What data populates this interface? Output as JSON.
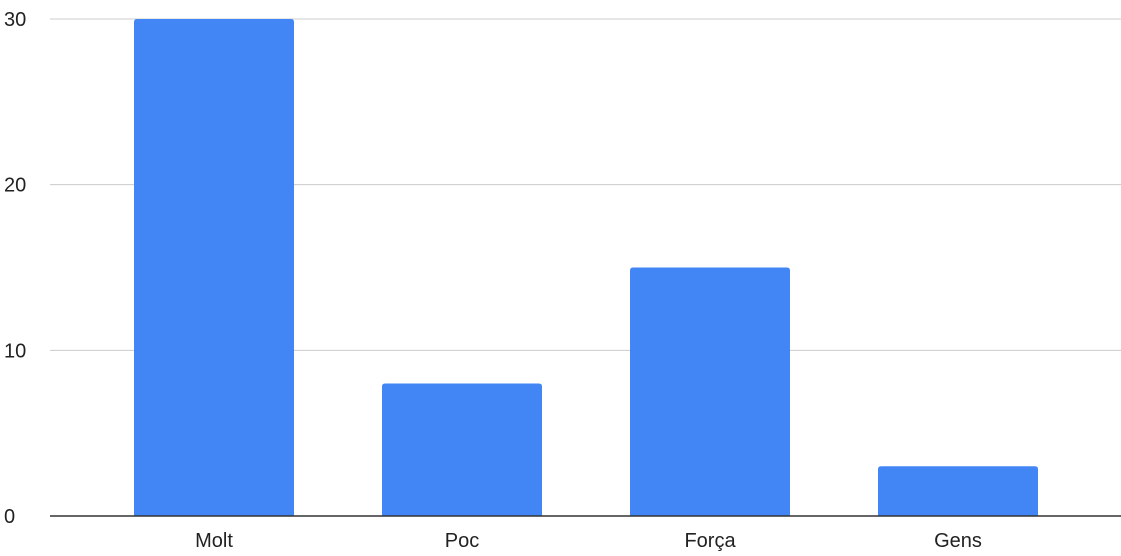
{
  "chart_data": {
    "type": "bar",
    "categories": [
      "Molt",
      "Poc",
      "Força",
      "Gens"
    ],
    "values": [
      30,
      8,
      15,
      3
    ],
    "title": "",
    "xlabel": "",
    "ylabel": "",
    "ylim": [
      0,
      30
    ],
    "yticks": [
      0,
      10,
      20,
      30
    ],
    "grid": true,
    "legend": "none",
    "colors": {
      "bar": "#4285f4",
      "grid": "#cccccc",
      "axis": "#333333"
    }
  }
}
